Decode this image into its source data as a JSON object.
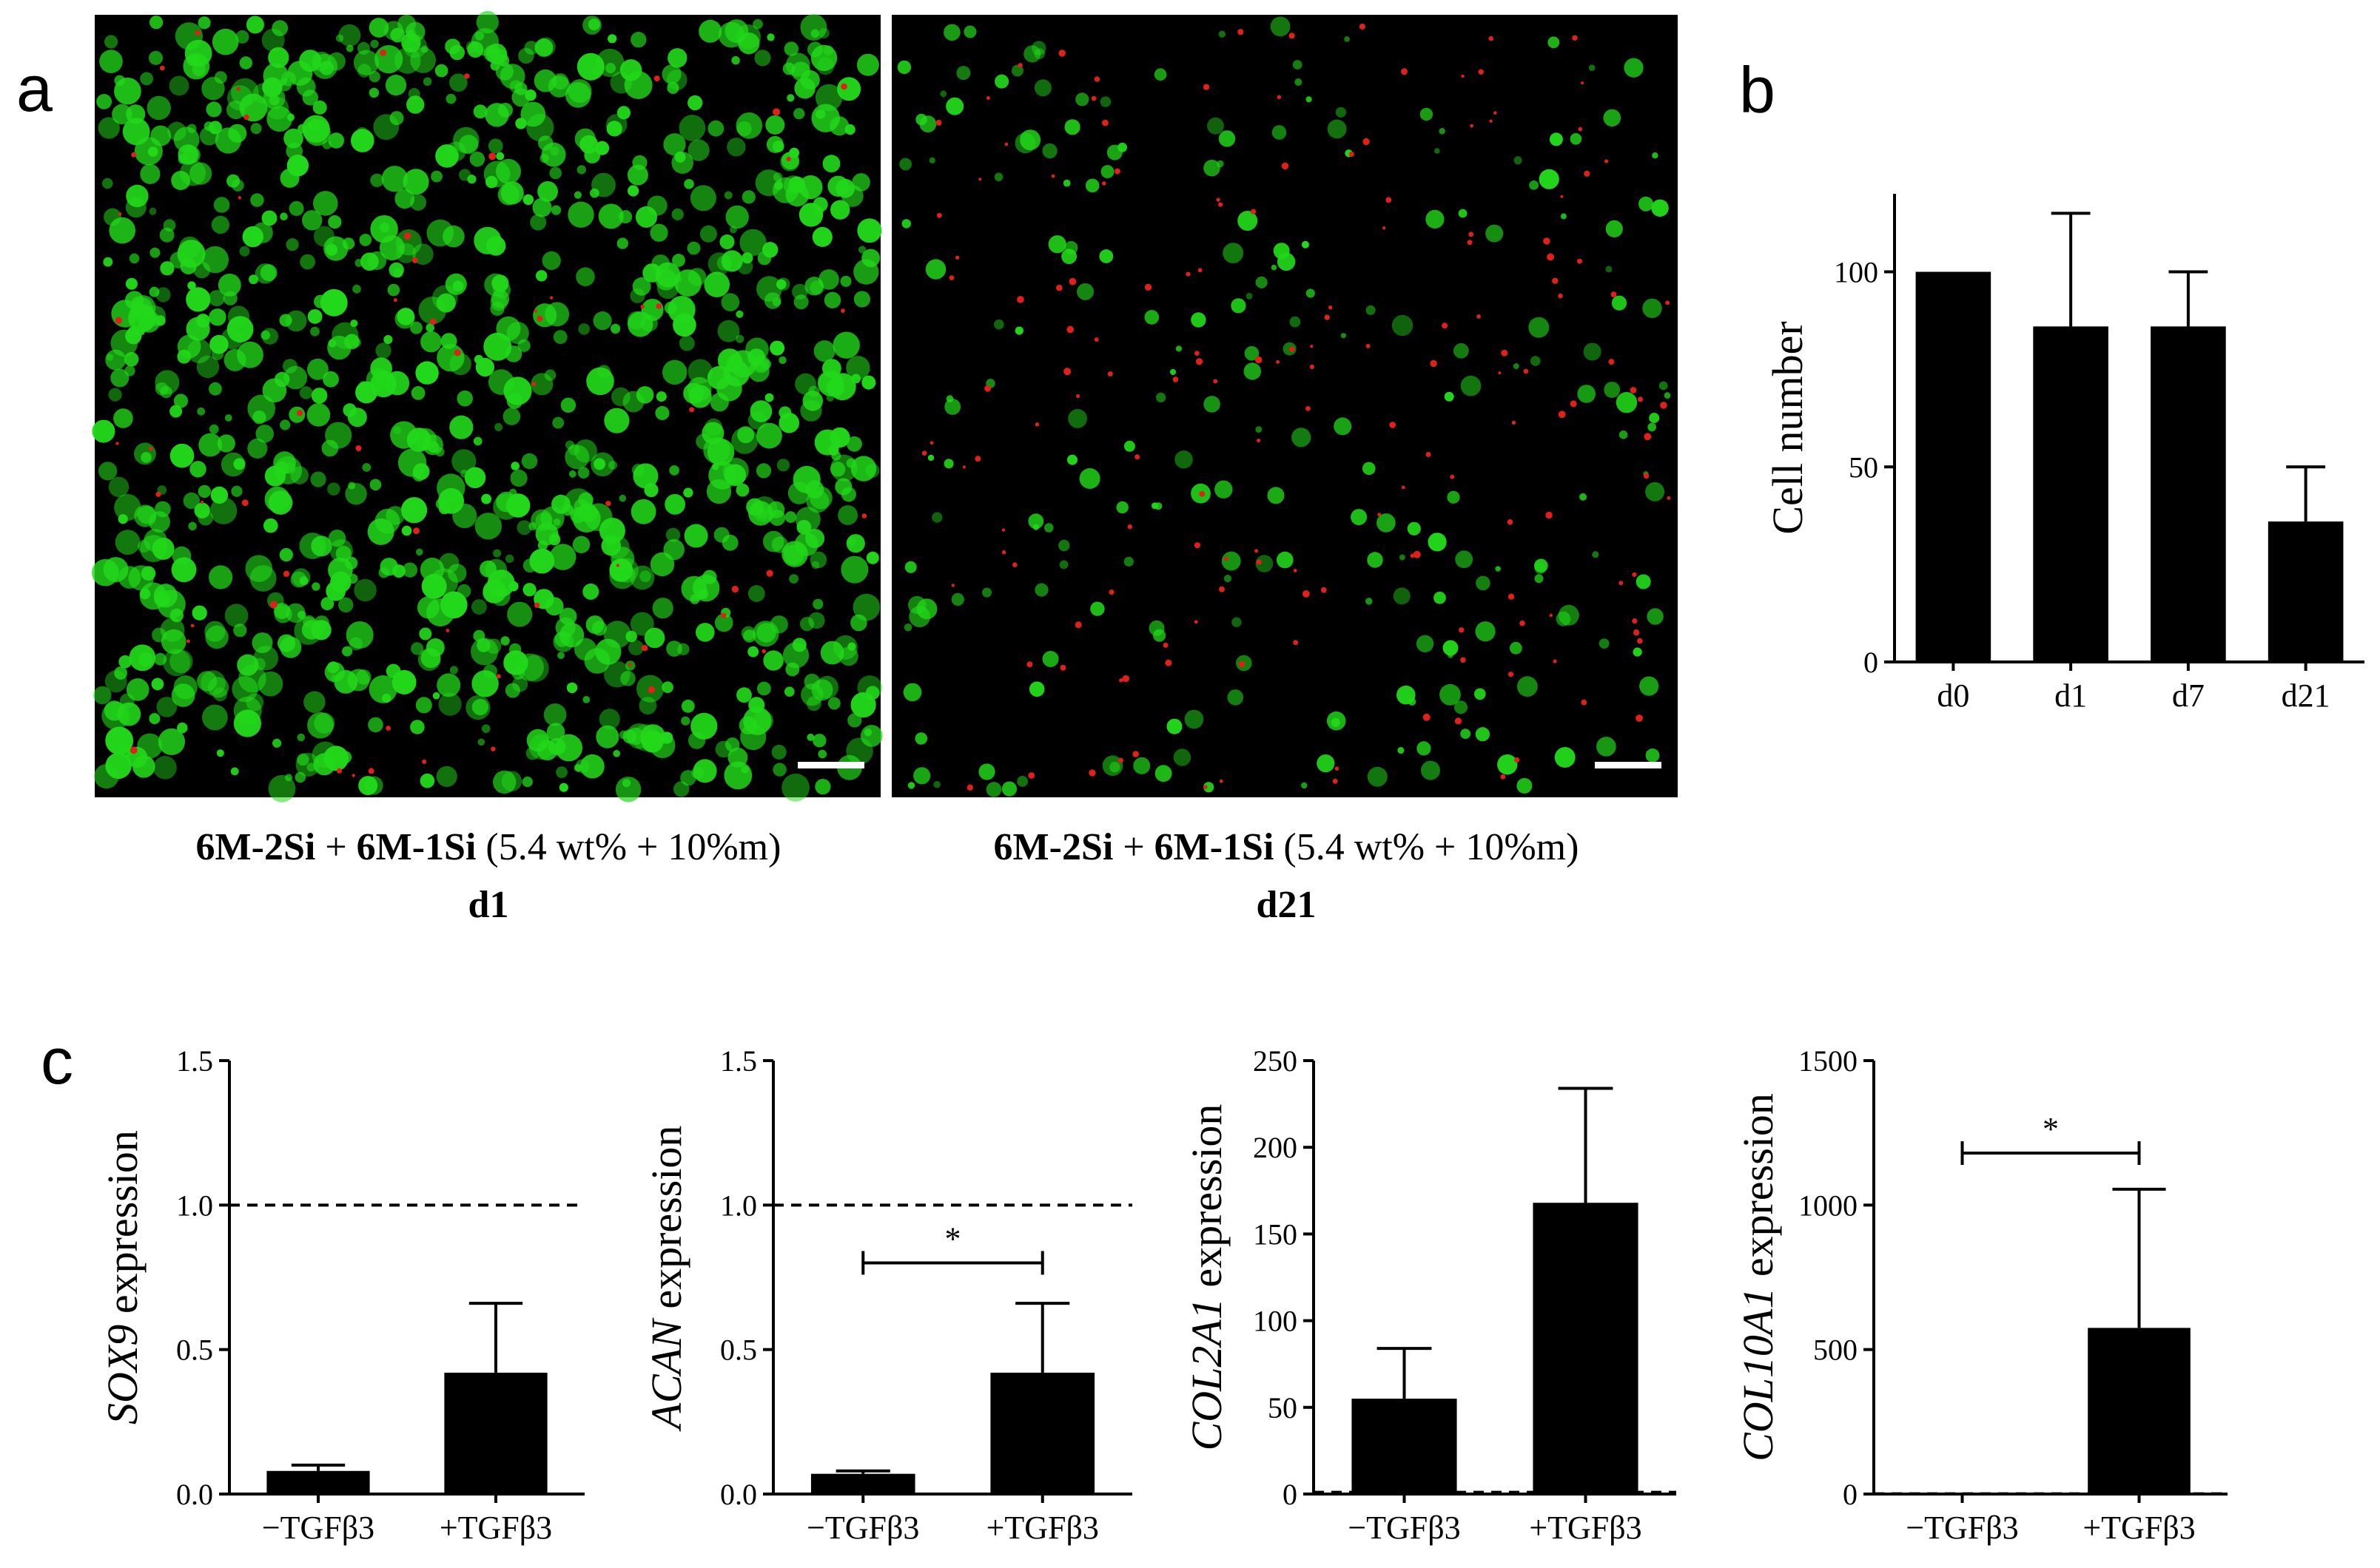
{
  "panels": {
    "a": "a",
    "b": "b",
    "c": "c"
  },
  "micrographs": [
    {
      "caption_bold_1": "6M-2Si",
      "caption_plus": " + ",
      "caption_bold_2": "6M-1Si",
      "caption_rest": " (5.4 wt% + 10%m)",
      "day": "d1"
    },
    {
      "caption_bold_1": "6M-2Si",
      "caption_plus": " + ",
      "caption_bold_2": "6M-1Si",
      "caption_rest": " (5.4 wt% + 10%m)",
      "day": "d21"
    }
  ],
  "colors": {
    "live": "#22d81a",
    "dead": "#e0201a",
    "background": "#000000",
    "bar": "#000000"
  },
  "chart_data": [
    {
      "id": "b",
      "type": "bar",
      "categories": [
        "d0",
        "d1",
        "d7",
        "d21"
      ],
      "values": [
        100,
        86,
        86,
        36
      ],
      "errors": [
        0,
        29,
        14,
        14
      ],
      "ylabel": "Cell number",
      "ylabel_italic": "",
      "ylabel_rest": "Cell number",
      "ylim": [
        0,
        120
      ],
      "yticks": [
        0,
        50,
        100
      ],
      "ytick_labels": [
        "0",
        "50",
        "100"
      ],
      "reference_line": null,
      "significance": null
    },
    {
      "id": "c1",
      "type": "bar",
      "categories": [
        "−TGFβ3",
        "+TGFβ3"
      ],
      "values": [
        0.08,
        0.42
      ],
      "errors": [
        0.02,
        0.24
      ],
      "ylabel_italic": "SOX9",
      "ylabel_rest": " expression",
      "ylim": [
        0,
        1.5
      ],
      "yticks": [
        0,
        0.5,
        1.0,
        1.5
      ],
      "ytick_labels": [
        "0.0",
        "0.5",
        "1.0",
        "1.5"
      ],
      "reference_line": 1.0,
      "significance": null
    },
    {
      "id": "c2",
      "type": "bar",
      "categories": [
        "−TGFβ3",
        "+TGFβ3"
      ],
      "values": [
        0.07,
        0.42
      ],
      "errors": [
        0.01,
        0.24
      ],
      "ylabel_italic": "ACAN",
      "ylabel_rest": " expression",
      "ylim": [
        0,
        1.5
      ],
      "yticks": [
        0,
        0.5,
        1.0,
        1.5
      ],
      "ytick_labels": [
        "0.0",
        "0.5",
        "1.0",
        "1.5"
      ],
      "reference_line": 1.0,
      "significance": {
        "label": "*",
        "from": 0,
        "to": 1,
        "y": 0.8
      }
    },
    {
      "id": "c3",
      "type": "bar",
      "categories": [
        "−TGFβ3",
        "+TGFβ3"
      ],
      "values": [
        55,
        168
      ],
      "errors": [
        29,
        66
      ],
      "ylabel_italic": "COL2A1",
      "ylabel_rest": " expression",
      "ylim": [
        0,
        250
      ],
      "yticks": [
        0,
        50,
        100,
        150,
        200,
        250
      ],
      "ytick_labels": [
        "0",
        "50",
        "100",
        "150",
        "200",
        "250"
      ],
      "reference_line": 1,
      "significance": null
    },
    {
      "id": "c4",
      "type": "bar",
      "categories": [
        "−TGFβ3",
        "+TGFβ3"
      ],
      "values": [
        0,
        575
      ],
      "errors": [
        0,
        480
      ],
      "ylabel_italic": "COL10A1",
      "ylabel_rest": " expression",
      "ylim": [
        0,
        1500
      ],
      "yticks": [
        0,
        500,
        1000,
        1500
      ],
      "ytick_labels": [
        "0",
        "500",
        "1000",
        "1500"
      ],
      "reference_line": 1,
      "significance": {
        "label": "*",
        "from": 0,
        "to": 1,
        "y": 1180
      }
    }
  ]
}
